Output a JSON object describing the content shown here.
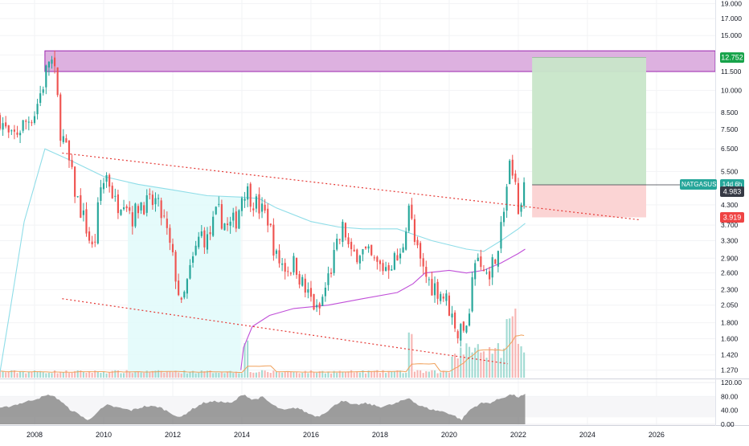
{
  "chart_data": {
    "type": "candlestick",
    "symbol": "NATGASUSD",
    "interval": "Monthly",
    "price_axis": {
      "scale": "log",
      "range": [
        1.2,
        19.5
      ],
      "ticks": [
        "19.000",
        "17.000",
        "15.000",
        "13.000",
        "11.500",
        "10.000",
        "8.500",
        "7.500",
        "6.500",
        "5.500",
        "4.300",
        "3.700",
        "3.300",
        "2.900",
        "2.600",
        "2.300",
        "2.050",
        "1.800",
        "1.600",
        "1.420",
        "1.270"
      ]
    },
    "time_axis": {
      "range": [
        2007.0,
        2027.7
      ],
      "ticks": [
        "2008",
        "2010",
        "2012",
        "2014",
        "2016",
        "2018",
        "2020",
        "2022",
        "2024",
        "2026"
      ]
    },
    "oscillator_axis": {
      "range": [
        0,
        120
      ],
      "ticks": [
        "120.00",
        "80.00",
        "40.00",
        "0.00"
      ]
    },
    "labels": {
      "symbol_tag": "NATGASUSD",
      "countdown": "14d 6h",
      "last_price": "4.983",
      "target_price": "12.752",
      "stop_price": "3.919"
    },
    "anchors": [
      [
        2007.0,
        8.2
      ],
      [
        2007.3,
        6.9
      ],
      [
        2007.6,
        7.6
      ],
      [
        2008.0,
        8.5
      ],
      [
        2008.25,
        10.5
      ],
      [
        2008.45,
        13.0
      ],
      [
        2008.6,
        11.0
      ],
      [
        2008.75,
        7.5
      ],
      [
        2008.95,
        6.2
      ],
      [
        2009.2,
        4.6
      ],
      [
        2009.45,
        3.8
      ],
      [
        2009.7,
        3.0
      ],
      [
        2009.9,
        4.8
      ],
      [
        2010.1,
        5.4
      ],
      [
        2010.35,
        4.3
      ],
      [
        2010.6,
        4.6
      ],
      [
        2010.85,
        3.9
      ],
      [
        2011.05,
        4.4
      ],
      [
        2011.3,
        4.3
      ],
      [
        2011.5,
        4.4
      ],
      [
        2011.75,
        3.8
      ],
      [
        2012.05,
        2.7
      ],
      [
        2012.25,
        2.0
      ],
      [
        2012.45,
        2.5
      ],
      [
        2012.8,
        3.5
      ],
      [
        2013.0,
        3.3
      ],
      [
        2013.3,
        4.1
      ],
      [
        2013.6,
        3.6
      ],
      [
        2013.85,
        3.9
      ],
      [
        2014.05,
        4.9
      ],
      [
        2014.25,
        4.6
      ],
      [
        2014.5,
        4.2
      ],
      [
        2014.75,
        3.9
      ],
      [
        2015.0,
        2.9
      ],
      [
        2015.3,
        2.7
      ],
      [
        2015.55,
        2.8
      ],
      [
        2015.8,
        2.3
      ],
      [
        2016.05,
        2.1
      ],
      [
        2016.2,
        1.9
      ],
      [
        2016.45,
        2.4
      ],
      [
        2016.7,
        3.0
      ],
      [
        2016.95,
        3.7
      ],
      [
        2017.15,
        2.9
      ],
      [
        2017.4,
        3.1
      ],
      [
        2017.65,
        2.95
      ],
      [
        2017.9,
        2.75
      ],
      [
        2018.1,
        2.7
      ],
      [
        2018.35,
        2.85
      ],
      [
        2018.6,
        2.9
      ],
      [
        2018.85,
        4.5
      ],
      [
        2018.95,
        3.4
      ],
      [
        2019.2,
        2.7
      ],
      [
        2019.45,
        2.4
      ],
      [
        2019.7,
        2.3
      ],
      [
        2019.95,
        2.1
      ],
      [
        2020.2,
        1.7
      ],
      [
        2020.4,
        1.65
      ],
      [
        2020.55,
        1.9
      ],
      [
        2020.75,
        2.9
      ],
      [
        2020.95,
        2.6
      ],
      [
        2021.2,
        2.7
      ],
      [
        2021.45,
        3.3
      ],
      [
        2021.6,
        4.3
      ],
      [
        2021.75,
        5.8
      ],
      [
        2021.85,
        5.3
      ],
      [
        2022.0,
        4.3
      ],
      [
        2022.15,
        4.98
      ]
    ],
    "volume_range": [
      0,
      7000
    ],
    "overlays": {
      "ellipse_band": [
        [
          2007.0,
          1.25
        ],
        [
          2007.3,
          2.0
        ],
        [
          2007.7,
          3.8
        ],
        [
          2008.3,
          6.5
        ],
        [
          2009.0,
          6.0
        ],
        [
          2010.0,
          5.3
        ],
        [
          2011.0,
          5.0
        ],
        [
          2012.0,
          4.8
        ],
        [
          2013.0,
          4.6
        ],
        [
          2014.0,
          4.55
        ],
        [
          2014.5,
          4.5
        ],
        [
          2015.0,
          4.2
        ],
        [
          2016.0,
          3.8
        ],
        [
          2016.8,
          3.65
        ],
        [
          2017.5,
          3.6
        ],
        [
          2018.5,
          3.6
        ],
        [
          2019.5,
          3.3
        ],
        [
          2020.5,
          3.1
        ],
        [
          2021.0,
          3.05
        ],
        [
          2021.5,
          3.3
        ],
        [
          2022.0,
          3.6
        ],
        [
          2022.2,
          3.75
        ]
      ],
      "support_line": [
        [
          2013.97,
          1.27
        ],
        [
          2014.05,
          1.5
        ],
        [
          2014.3,
          1.75
        ],
        [
          2014.8,
          1.9
        ],
        [
          2015.5,
          2.0
        ],
        [
          2016.5,
          2.05
        ],
        [
          2017.5,
          2.15
        ],
        [
          2018.5,
          2.25
        ],
        [
          2018.95,
          2.4
        ],
        [
          2019.3,
          2.6
        ],
        [
          2020.0,
          2.65
        ],
        [
          2020.5,
          2.6
        ],
        [
          2021.0,
          2.65
        ],
        [
          2021.5,
          2.8
        ],
        [
          2022.0,
          3.0
        ],
        [
          2022.2,
          3.1
        ]
      ],
      "oscillator": [
        [
          2007.0,
          45
        ],
        [
          2007.4,
          55
        ],
        [
          2007.8,
          66
        ],
        [
          2008.2,
          78
        ],
        [
          2008.45,
          85
        ],
        [
          2008.7,
          72
        ],
        [
          2009.0,
          44
        ],
        [
          2009.4,
          22
        ],
        [
          2009.55,
          9
        ],
        [
          2009.8,
          35
        ],
        [
          2010.1,
          55
        ],
        [
          2010.4,
          48
        ],
        [
          2010.8,
          40
        ],
        [
          2011.2,
          52
        ],
        [
          2011.6,
          50
        ],
        [
          2012.0,
          30
        ],
        [
          2012.2,
          18
        ],
        [
          2012.5,
          40
        ],
        [
          2012.9,
          62
        ],
        [
          2013.3,
          66
        ],
        [
          2013.7,
          60
        ],
        [
          2014.05,
          88
        ],
        [
          2014.3,
          70
        ],
        [
          2014.6,
          78
        ],
        [
          2014.9,
          55
        ],
        [
          2015.2,
          40
        ],
        [
          2015.6,
          48
        ],
        [
          2015.9,
          32
        ],
        [
          2016.2,
          22
        ],
        [
          2016.5,
          40
        ],
        [
          2016.9,
          70
        ],
        [
          2017.2,
          55
        ],
        [
          2017.6,
          60
        ],
        [
          2018.0,
          50
        ],
        [
          2018.4,
          58
        ],
        [
          2018.85,
          76
        ],
        [
          2019.1,
          55
        ],
        [
          2019.5,
          42
        ],
        [
          2019.9,
          35
        ],
        [
          2020.2,
          22
        ],
        [
          2020.35,
          12
        ],
        [
          2020.6,
          42
        ],
        [
          2020.9,
          60
        ],
        [
          2021.2,
          62
        ],
        [
          2021.5,
          75
        ],
        [
          2021.8,
          86
        ],
        [
          2022.0,
          78
        ],
        [
          2022.2,
          85
        ]
      ]
    },
    "channel": {
      "upper": [
        [
          2008.8,
          6.3
        ],
        [
          2025.5,
          3.85
        ]
      ],
      "lower": [
        [
          2008.8,
          2.15
        ],
        [
          2021.7,
          1.33
        ]
      ]
    },
    "resistance_zone": {
      "time": [
        2008.3,
        2027.7
      ],
      "price": [
        11.5,
        13.4
      ]
    },
    "shaded_regions": [
      {
        "time": [
          2010.7,
          2013.97
        ],
        "price_top_from": "ellipse_band"
      }
    ],
    "trade_setup": {
      "time": [
        2022.4,
        2025.7
      ],
      "entry": 4.983,
      "target": 12.752,
      "stop": 3.919
    },
    "colors": {
      "up": "#26a69a",
      "down": "#ef5350",
      "band_line": "#8fdde8",
      "band_fill": "#e0fafa",
      "support": "#c04fd8",
      "channel": "#e53935",
      "zone_fill": "#ddb1e0",
      "zone_edge": "#9c27b0",
      "profit": "#c8e6c9",
      "loss": "#fbd2d2",
      "volume_up": "#a3dbd3",
      "volume_down": "#f7b7b5",
      "volume_ma": "#f0a05a",
      "oscillator": "#7d7d7d",
      "axis_text": "#131722",
      "target_tag": "#16a34a",
      "stop_tag": "#ef4444",
      "symbol_tag": "#26a69a",
      "price_tag": "#363a45"
    }
  }
}
